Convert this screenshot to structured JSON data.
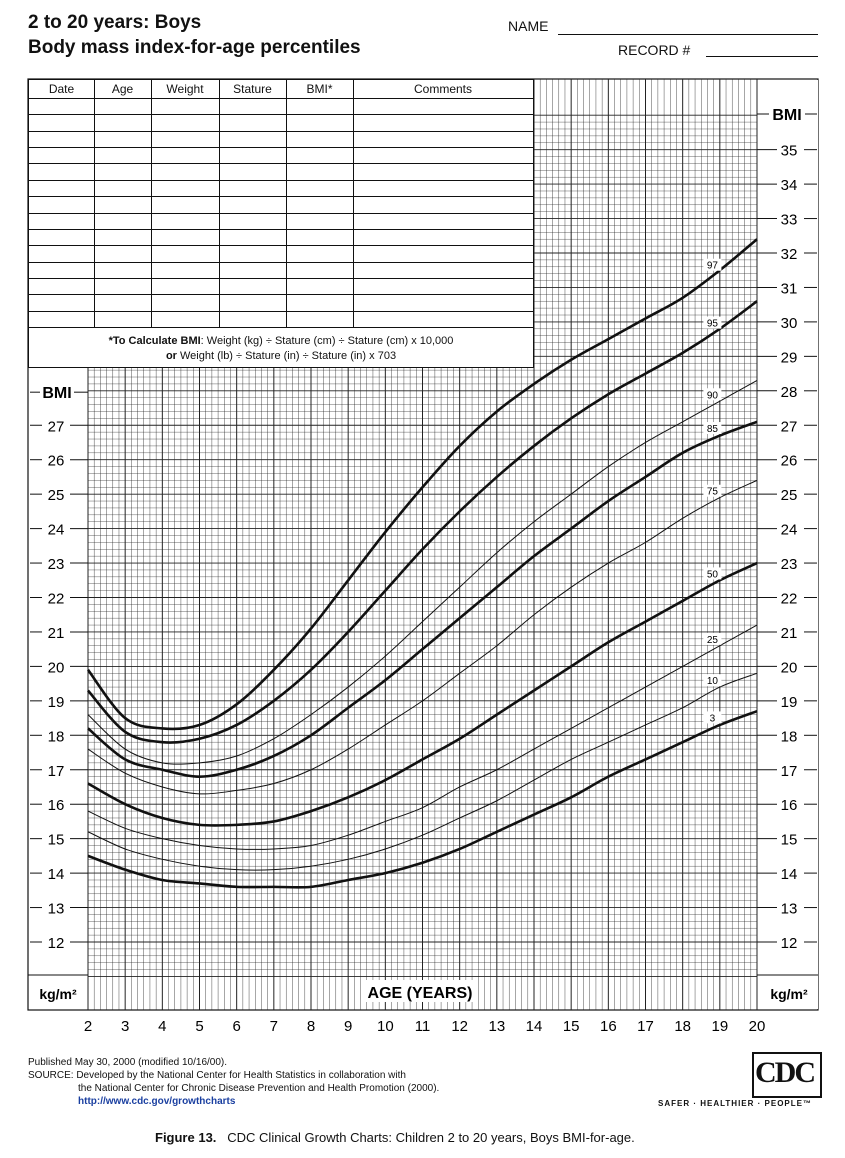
{
  "header": {
    "title_line1": "2 to 20 years: Boys",
    "title_line2": "Body mass index-for-age percentiles",
    "name_label": "NAME",
    "record_label": "RECORD #"
  },
  "record_table": {
    "columns": [
      "Date",
      "Age",
      "Weight",
      "Stature",
      "BMI*",
      "Comments"
    ],
    "note_line1_bold": "*To Calculate BMI",
    "note_line1": ": Weight (kg) ÷ Stature (cm) ÷ Stature (cm) x 10,000",
    "note_line2_bold": "or",
    "note_line2": " Weight (lb) ÷ Stature (in) ÷ Stature (in) x 703"
  },
  "footer": {
    "published": "Published May 30, 2000 (modified 10/16/00).",
    "source_line1": "SOURCE: Developed by the National Center for Health Statistics in collaboration with",
    "source_line2": "the National Center for Chronic Disease Prevention and Health Promotion (2000).",
    "url": "http://www.cdc.gov/growthcharts",
    "logo_text": "CDC",
    "tagline": "SAFER · HEALTHIER · PEOPLE™",
    "caption_bold": "Figure 13.",
    "caption": "CDC Clinical Growth Charts: Children 2 to 20 years, Boys BMI-for-age."
  },
  "chart_data": {
    "type": "line",
    "xlabel": "AGE (YEARS)",
    "ylabel_left": "BMI",
    "ylabel_right": "BMI",
    "unit_left": "kg/m²",
    "unit_right": "kg/m²",
    "xlim": [
      2,
      20
    ],
    "ylim": [
      11,
      36
    ],
    "x_ticks": [
      2,
      3,
      4,
      5,
      6,
      7,
      8,
      9,
      10,
      11,
      12,
      13,
      14,
      15,
      16,
      17,
      18,
      19,
      20
    ],
    "y_ticks_left": [
      12,
      13,
      14,
      15,
      16,
      17,
      18,
      19,
      20,
      21,
      22,
      23,
      24,
      25,
      26,
      27
    ],
    "y_ticks_right": [
      12,
      13,
      14,
      15,
      16,
      17,
      18,
      19,
      20,
      21,
      22,
      23,
      24,
      25,
      26,
      27,
      28,
      29,
      30,
      31,
      32,
      33,
      34,
      35
    ],
    "grid": true,
    "x": [
      2,
      3,
      4,
      5,
      6,
      7,
      8,
      9,
      10,
      11,
      12,
      13,
      14,
      15,
      16,
      17,
      18,
      19,
      20
    ],
    "series": [
      {
        "name": "97",
        "label_x": 18.8,
        "values": [
          19.9,
          18.5,
          18.2,
          18.3,
          18.9,
          19.9,
          21.1,
          22.5,
          23.9,
          25.2,
          26.4,
          27.4,
          28.2,
          28.9,
          29.5,
          30.1,
          30.7,
          31.5,
          32.4
        ]
      },
      {
        "name": "95",
        "label_x": 18.8,
        "values": [
          19.3,
          18.1,
          17.8,
          17.9,
          18.3,
          19.0,
          19.9,
          21.0,
          22.2,
          23.4,
          24.5,
          25.5,
          26.4,
          27.2,
          27.9,
          28.5,
          29.1,
          29.8,
          30.6
        ]
      },
      {
        "name": "90",
        "label_x": 18.8,
        "values": [
          18.6,
          17.6,
          17.2,
          17.2,
          17.4,
          17.9,
          18.6,
          19.4,
          20.3,
          21.3,
          22.3,
          23.3,
          24.2,
          25.0,
          25.8,
          26.5,
          27.1,
          27.7,
          28.3
        ]
      },
      {
        "name": "85",
        "label_x": 18.8,
        "values": [
          18.2,
          17.3,
          17.0,
          16.8,
          17.0,
          17.4,
          18.0,
          18.8,
          19.6,
          20.5,
          21.4,
          22.3,
          23.2,
          24.0,
          24.8,
          25.5,
          26.2,
          26.7,
          27.1
        ]
      },
      {
        "name": "75",
        "label_x": 18.8,
        "values": [
          17.6,
          16.9,
          16.5,
          16.3,
          16.4,
          16.6,
          17.0,
          17.6,
          18.3,
          19.0,
          19.8,
          20.6,
          21.5,
          22.3,
          23.0,
          23.6,
          24.3,
          24.9,
          25.4
        ]
      },
      {
        "name": "50",
        "label_x": 18.8,
        "values": [
          16.6,
          16.0,
          15.6,
          15.4,
          15.4,
          15.5,
          15.8,
          16.2,
          16.7,
          17.3,
          17.9,
          18.6,
          19.3,
          20.0,
          20.7,
          21.3,
          21.9,
          22.5,
          23.0
        ]
      },
      {
        "name": "25",
        "label_x": 18.8,
        "values": [
          15.8,
          15.3,
          15.0,
          14.8,
          14.7,
          14.7,
          14.8,
          15.1,
          15.5,
          15.9,
          16.5,
          17.0,
          17.6,
          18.2,
          18.8,
          19.4,
          20.0,
          20.6,
          21.2
        ]
      },
      {
        "name": "10",
        "label_x": 18.8,
        "values": [
          15.2,
          14.7,
          14.4,
          14.2,
          14.1,
          14.1,
          14.2,
          14.4,
          14.7,
          15.1,
          15.6,
          16.1,
          16.7,
          17.3,
          17.8,
          18.3,
          18.8,
          19.4,
          19.8
        ]
      },
      {
        "name": "3",
        "label_x": 18.8,
        "values": [
          14.5,
          14.1,
          13.8,
          13.7,
          13.6,
          13.6,
          13.6,
          13.8,
          14.0,
          14.3,
          14.7,
          15.2,
          15.7,
          16.2,
          16.8,
          17.3,
          17.8,
          18.3,
          18.7
        ]
      }
    ],
    "bold_series": [
      "97",
      "95",
      "85",
      "50",
      "3"
    ]
  }
}
